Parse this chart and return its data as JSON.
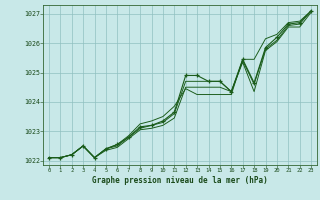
{
  "title": "Graphe pression niveau de la mer (hPa)",
  "bg_color": "#c8e8e8",
  "plot_bg_color": "#c8e8e8",
  "grid_color": "#90c0c0",
  "line_color": "#1a5c1a",
  "hours": [
    0,
    1,
    2,
    3,
    4,
    5,
    6,
    7,
    8,
    9,
    10,
    11,
    12,
    13,
    14,
    15,
    16,
    17,
    18,
    19,
    20,
    21,
    22,
    23
  ],
  "series_main": [
    1022.1,
    1022.1,
    1022.2,
    1022.5,
    1022.1,
    1022.4,
    1022.55,
    1022.8,
    1023.15,
    1023.2,
    1023.35,
    1023.65,
    1024.9,
    1024.9,
    1024.7,
    1024.7,
    1024.35,
    1025.45,
    1024.65,
    1025.85,
    1026.2,
    1026.65,
    1026.7,
    1027.1
  ],
  "series_hi": [
    1022.1,
    1022.1,
    1022.2,
    1022.5,
    1022.1,
    1022.4,
    1022.55,
    1022.85,
    1023.25,
    1023.35,
    1023.5,
    1023.85,
    1024.45,
    1024.25,
    1024.25,
    1024.25,
    1024.25,
    1025.45,
    1025.45,
    1026.15,
    1026.3,
    1026.7,
    1026.75,
    1027.1
  ],
  "series_lo": [
    1022.1,
    1022.1,
    1022.2,
    1022.5,
    1022.1,
    1022.35,
    1022.45,
    1022.75,
    1023.05,
    1023.1,
    1023.2,
    1023.45,
    1024.5,
    1024.5,
    1024.5,
    1024.5,
    1024.35,
    1025.35,
    1024.35,
    1025.75,
    1026.05,
    1026.55,
    1026.55,
    1027.05
  ],
  "series_trend": [
    1022.1,
    1022.1,
    1022.2,
    1022.5,
    1022.1,
    1022.4,
    1022.5,
    1022.8,
    1023.1,
    1023.2,
    1023.3,
    1023.6,
    1024.7,
    1024.7,
    1024.7,
    1024.7,
    1024.35,
    1025.4,
    1024.6,
    1025.8,
    1026.1,
    1026.6,
    1026.65,
    1027.1
  ],
  "ylim": [
    1021.85,
    1027.3
  ],
  "yticks": [
    1022,
    1023,
    1024,
    1025,
    1026,
    1027
  ],
  "xlim": [
    -0.5,
    23.5
  ]
}
